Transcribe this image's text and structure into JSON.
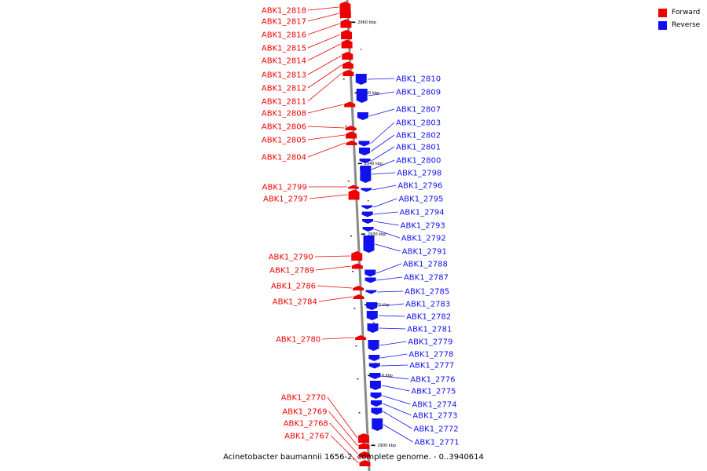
{
  "legend": {
    "forward_label": "Forward",
    "reverse_label": "Reverse",
    "forward_color": "#ee0000",
    "reverse_color": "#1111ee"
  },
  "caption": "Acinetobacter baumannii 1656-2, complete genome. - 0..3940614",
  "scale_marks": [
    "2960 kbp",
    "2950 kbp",
    "2940 kbp",
    "2930 kbp",
    "2920 kbp",
    "2910 kbp",
    "2900 kbp"
  ],
  "forward_genes": [
    "ABK1_2818",
    "ABK1_2817",
    "ABK1_2816",
    "ABK1_2815",
    "ABK1_2814",
    "ABK1_2813",
    "ABK1_2812",
    "ABK1_2811",
    "ABK1_2808",
    "ABK1_2806",
    "ABK1_2805",
    "ABK1_2804",
    "ABK1_2799",
    "ABK1_2797",
    "ABK1_2790",
    "ABK1_2789",
    "ABK1_2786",
    "ABK1_2784",
    "ABK1_2780",
    "ABK1_2770",
    "ABK1_2769",
    "ABK1_2768",
    "ABK1_2767"
  ],
  "reverse_genes": [
    "ABK1_2810",
    "ABK1_2809",
    "ABK1_2807",
    "ABK1_2803",
    "ABK1_2802",
    "ABK1_2801",
    "ABK1_2800",
    "ABK1_2798",
    "ABK1_2796",
    "ABK1_2795",
    "ABK1_2794",
    "ABK1_2793",
    "ABK1_2792",
    "ABK1_2791",
    "ABK1_2788",
    "ABK1_2787",
    "ABK1_2785",
    "ABK1_2783",
    "ABK1_2782",
    "ABK1_2781",
    "ABK1_2779",
    "ABK1_2778",
    "ABK1_2777",
    "ABK1_2776",
    "ABK1_2775",
    "ABK1_2774",
    "ABK1_2773",
    "ABK1_2772",
    "ABK1_2771"
  ]
}
